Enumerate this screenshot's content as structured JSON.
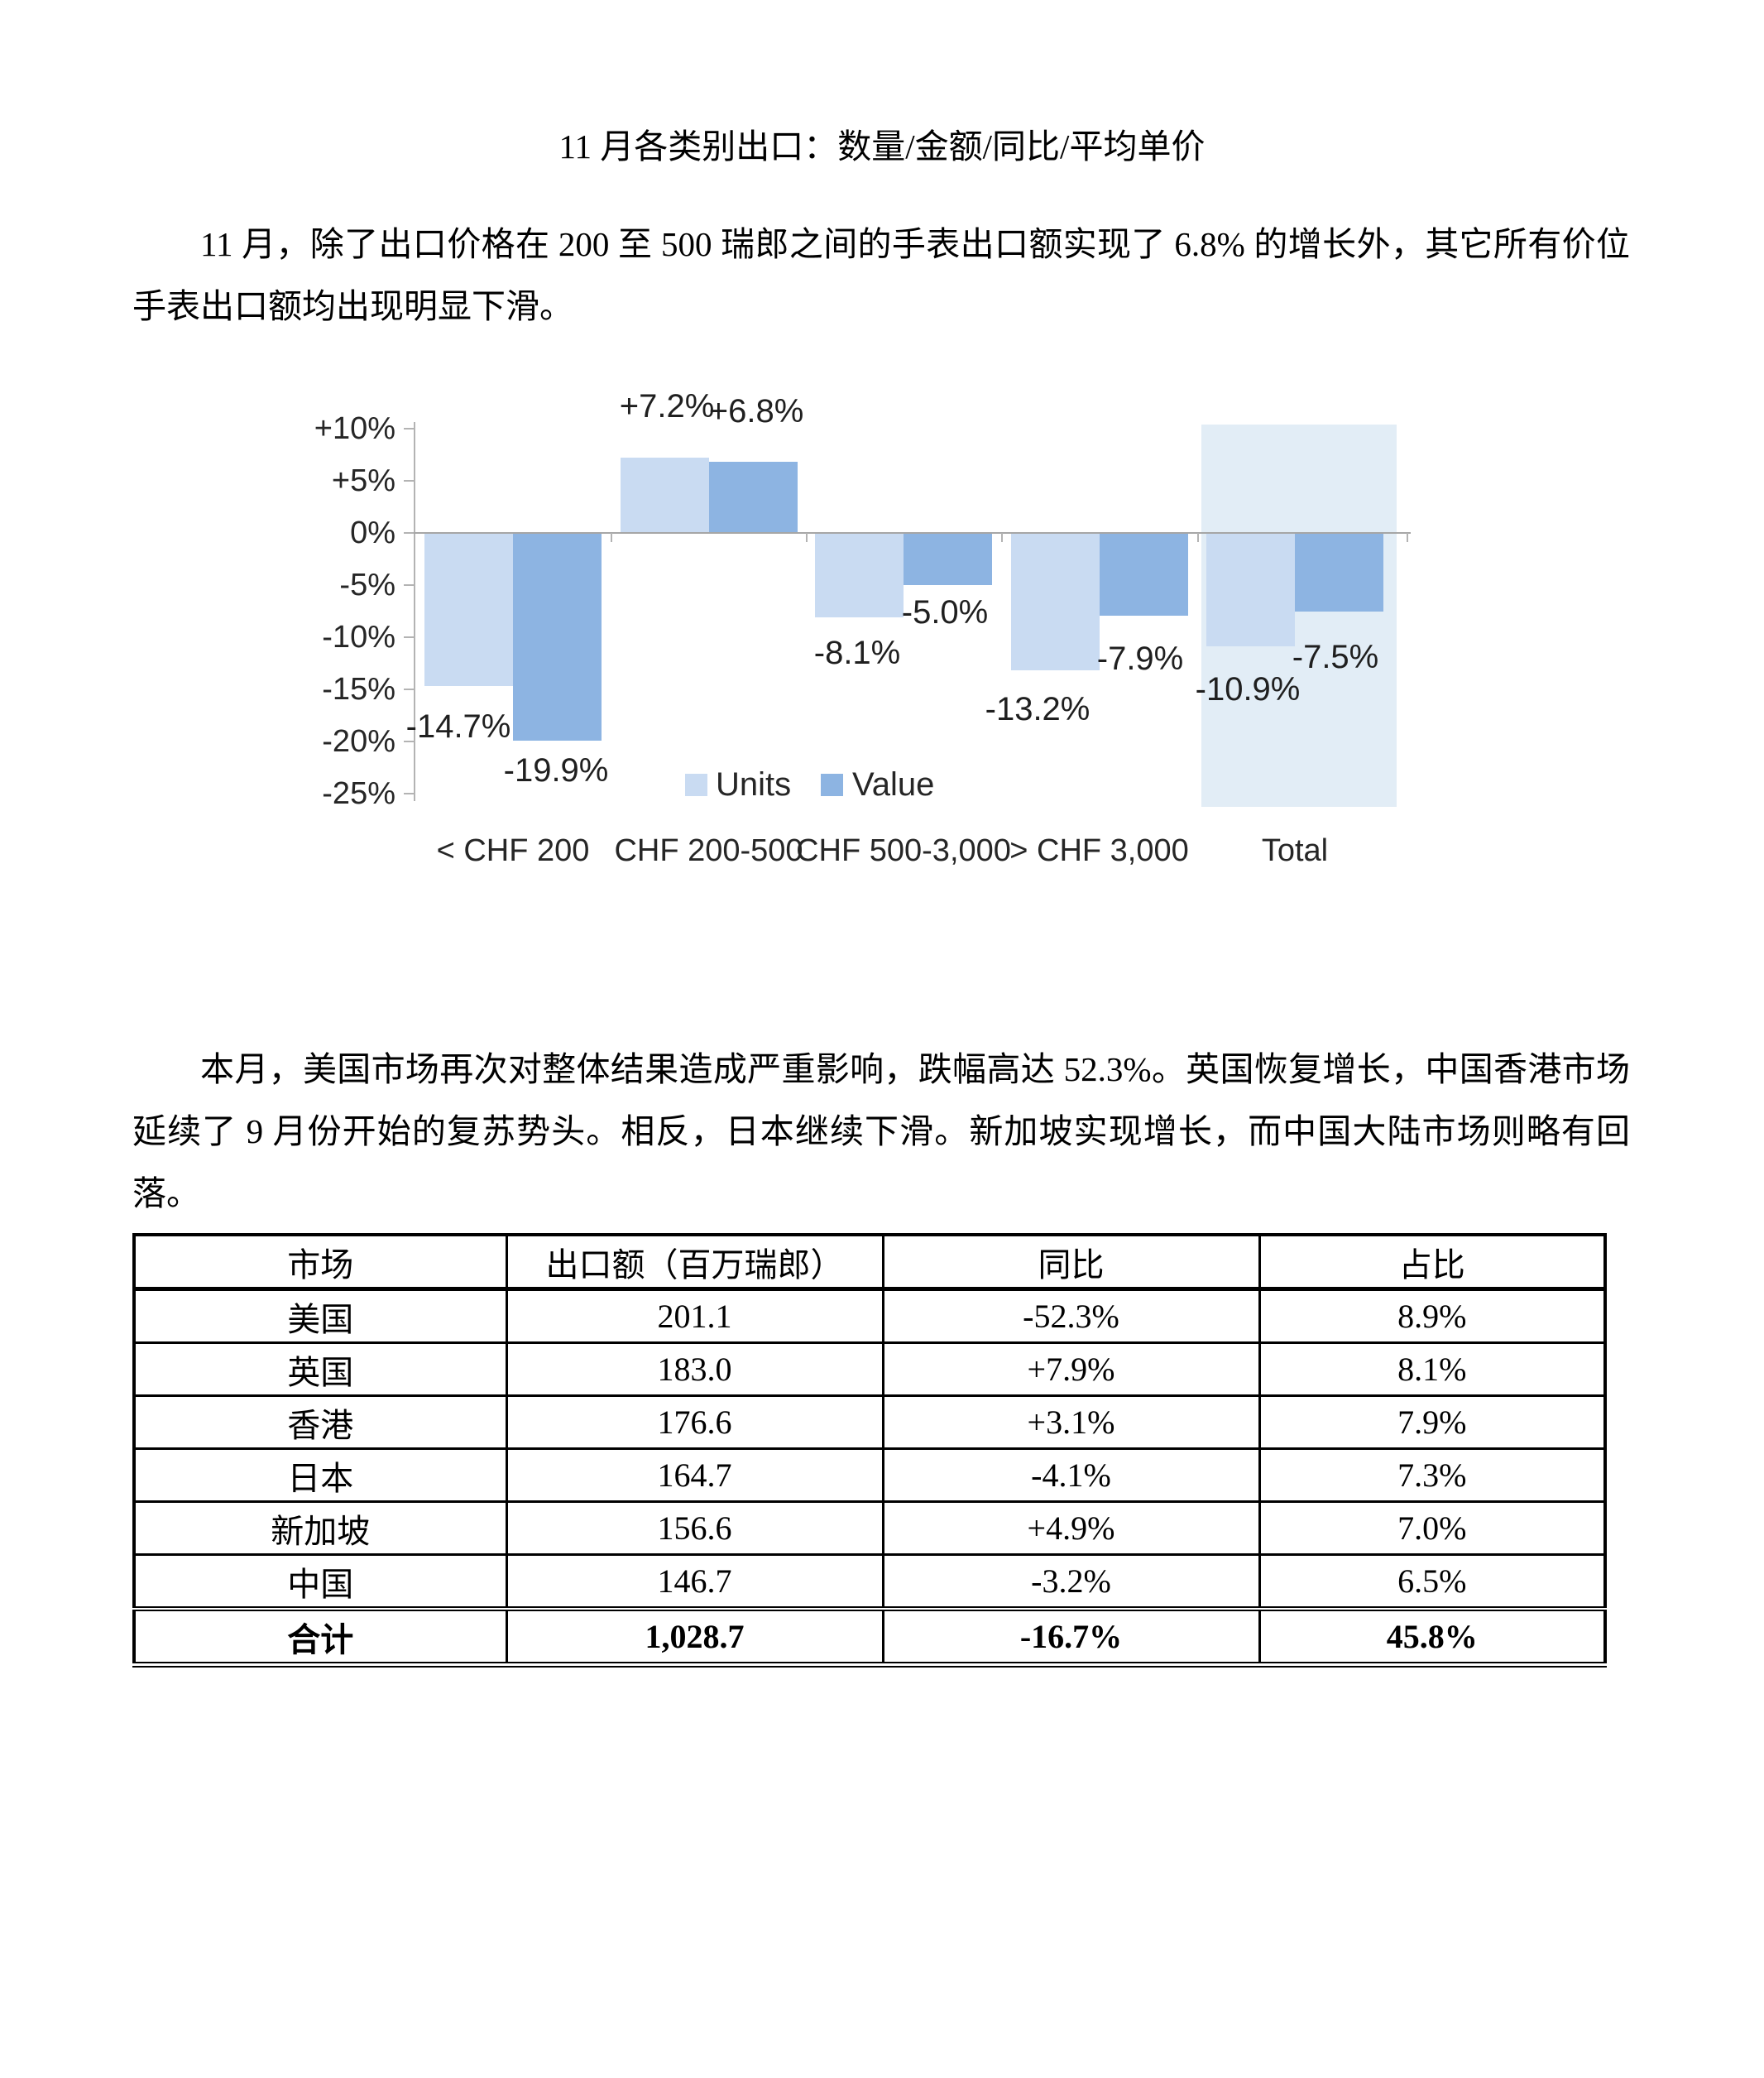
{
  "page": {
    "title": "11 月各类别出口：数量/金额/同比/平均单价",
    "paragraph1": "11 月，除了出口价格在 200 至 500 瑞郎之间的手表出口额实现了 6.8% 的增长外，其它所有价位手表出口额均出现明显下滑。",
    "paragraph2": "本月，美国市场再次对整体结果造成严重影响，跌幅高达 52.3%。英国恢复增长，中国香港市场延续了 9 月份开始的复苏势头。相反，日本继续下滑。新加坡实现增长，而中国大陆市场则略有回落。"
  },
  "chart_data": {
    "type": "bar",
    "title": "",
    "categories": [
      "< CHF 200",
      "CHF 200-500",
      "CHF 500-3,000",
      "> CHF 3,000",
      "Total"
    ],
    "series": [
      {
        "name": "Units",
        "values": [
          -14.7,
          7.2,
          -8.1,
          -13.2,
          -10.9
        ],
        "labels": [
          "-14.7%",
          "+7.2%",
          "-8.1%",
          "-13.2%",
          "-10.9%"
        ],
        "color": "#c9dbf2"
      },
      {
        "name": "Value",
        "values": [
          -19.9,
          6.8,
          -5.0,
          -7.9,
          -7.5
        ],
        "labels": [
          "-19.9%",
          "+6.8%",
          "-5.0%",
          "-7.9%",
          "-7.5%"
        ],
        "color": "#8db4e2"
      }
    ],
    "y_ticks": [
      "+10%",
      "+5%",
      "0%",
      "-5%",
      "-10%",
      "-15%",
      "-20%",
      "-25%"
    ],
    "ylim": [
      -25,
      10
    ],
    "grid": false,
    "legend": [
      "Units",
      "Value"
    ],
    "legend_position": "inside-bottom-center",
    "highlight_category": "Total",
    "colors": {
      "highlight_band": "#e2edf6",
      "axis_line": "#b3b3b3",
      "zero_line": "#a6a6a6"
    }
  },
  "table": {
    "headers": [
      "市场",
      "出口额（百万瑞郎）",
      "同比",
      "占比"
    ],
    "rows": [
      [
        "美国",
        "201.1",
        "-52.3%",
        "8.9%"
      ],
      [
        "英国",
        "183.0",
        "+7.9%",
        "8.1%"
      ],
      [
        "香港",
        "176.6",
        "+3.1%",
        "7.9%"
      ],
      [
        "日本",
        "164.7",
        "-4.1%",
        "7.3%"
      ],
      [
        "新加坡",
        "156.6",
        "+4.9%",
        "7.0%"
      ],
      [
        "中国",
        "146.7",
        "-3.2%",
        "6.5%"
      ]
    ],
    "total_row": [
      "合计",
      "1,028.7",
      "-16.7%",
      "45.8%"
    ]
  }
}
